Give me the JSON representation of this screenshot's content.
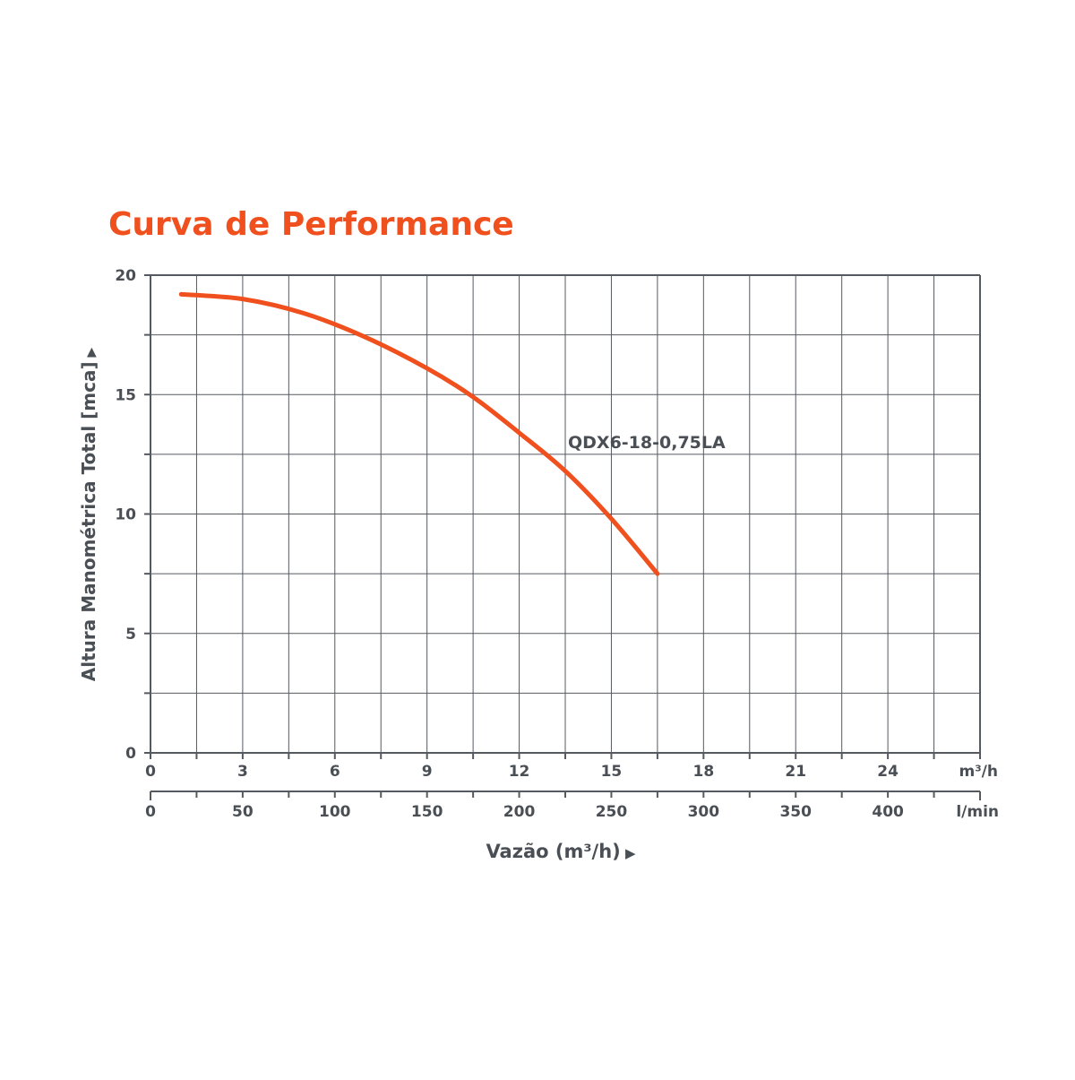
{
  "colors": {
    "accent": "#f0501e",
    "axis": "#555a60",
    "grid": "#555a60",
    "text": "#4a4f55"
  },
  "chart_data": {
    "type": "line",
    "title": "Curva de Performance",
    "ylabel": "Altura Manométrica Total [mca]",
    "ylabel_arrow": "▶",
    "xlabel": "Vazão (m³/h)",
    "xlabel_arrow": "▶",
    "x_unit": "m³/h",
    "x2_unit": "l/min",
    "xlim": [
      0,
      27
    ],
    "ylim": [
      0,
      20
    ],
    "x_ticks": [
      "0",
      "3",
      "6",
      "9",
      "12",
      "15",
      "18",
      "21",
      "24"
    ],
    "x_tick_values": [
      0,
      3,
      6,
      9,
      12,
      15,
      18,
      21,
      24
    ],
    "x2_ticks": [
      "0",
      "50",
      "100",
      "150",
      "200",
      "250",
      "300",
      "350",
      "400"
    ],
    "x2_tick_values": [
      0,
      50,
      100,
      150,
      200,
      250,
      300,
      350,
      400
    ],
    "y_ticks": [
      "0",
      "5",
      "10",
      "15",
      "20"
    ],
    "y_tick_values": [
      0,
      5,
      10,
      15,
      20
    ],
    "grid": true,
    "series": [
      {
        "name": "QDX6-18-0,75LA",
        "x": [
          1.0,
          3.0,
          5.0,
          7.0,
          9.0,
          10.5,
          12.0,
          13.5,
          15.0,
          16.5
        ],
        "y": [
          19.2,
          19.0,
          18.4,
          17.4,
          16.1,
          14.9,
          13.4,
          11.8,
          9.8,
          7.5
        ]
      }
    ]
  }
}
